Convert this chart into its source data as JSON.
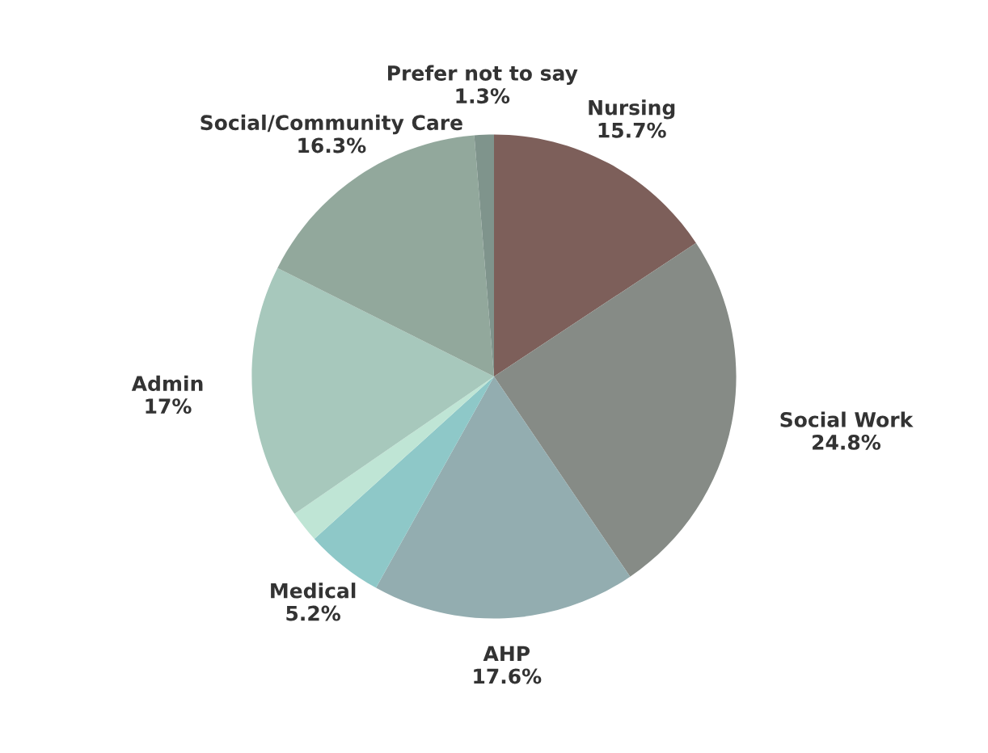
{
  "chart_data": {
    "type": "pie",
    "categories": [
      "Nursing",
      "Social Work",
      "AHP",
      "Medical",
      null,
      "Admin",
      "Social/Community Care",
      "Prefer not to say"
    ],
    "values": [
      15.7,
      24.8,
      17.6,
      5.2,
      2.1,
      17,
      16.3,
      1.3
    ],
    "value_labels": [
      "15.7%",
      "24.8%",
      "17.6%",
      "5.2%",
      null,
      "17%",
      "16.3%",
      "1.3%"
    ],
    "colors": [
      "#7d5f5a",
      "#868b86",
      "#93adb0",
      "#8ec8c8",
      "#bfe5d5",
      "#a7c8bc",
      "#92a89c",
      "#7f948c"
    ]
  }
}
